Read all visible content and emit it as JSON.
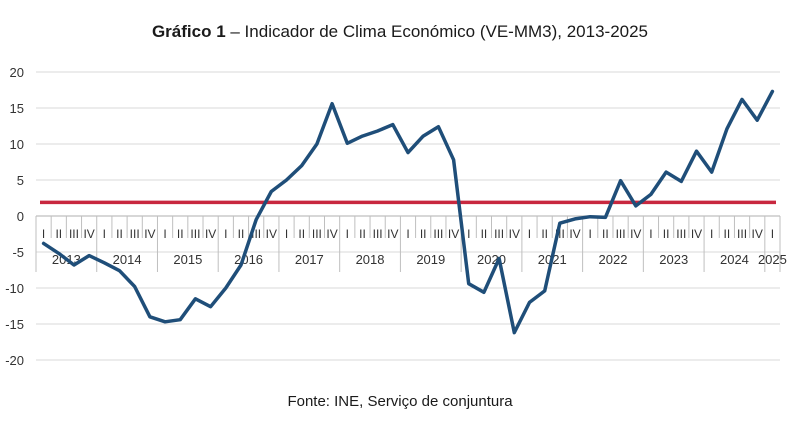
{
  "chart_data": {
    "type": "line",
    "title_bold": "Gráfico 1",
    "title_rest": " – Indicador de Clima Económico (VE-MM3), 2013-2025",
    "xlabel": "",
    "ylabel": "",
    "ylim": [
      -20,
      20
    ],
    "yticks": [
      20,
      15,
      10,
      5,
      0,
      -5,
      -10,
      -15,
      -20
    ],
    "grid": "horizontal",
    "years": [
      "2013",
      "2014",
      "2015",
      "2016",
      "2017",
      "2018",
      "2019",
      "2020",
      "2021",
      "2022",
      "2023",
      "2024",
      "2025"
    ],
    "quarter_labels": [
      "I",
      "II",
      "III",
      "IV"
    ],
    "x": [
      "2013-I",
      "2013-II",
      "2013-III",
      "2013-IV",
      "2014-I",
      "2014-II",
      "2014-III",
      "2014-IV",
      "2015-I",
      "2015-II",
      "2015-III",
      "2015-IV",
      "2016-I",
      "2016-II",
      "2016-III",
      "2016-IV",
      "2017-I",
      "2017-II",
      "2017-III",
      "2017-IV",
      "2018-I",
      "2018-II",
      "2018-III",
      "2018-IV",
      "2019-I",
      "2019-II",
      "2019-III",
      "2019-IV",
      "2020-I",
      "2020-II",
      "2020-III",
      "2020-IV",
      "2021-I",
      "2021-II",
      "2021-III",
      "2021-IV",
      "2022-I",
      "2022-II",
      "2022-III",
      "2022-IV",
      "2023-I",
      "2023-II",
      "2023-III",
      "2023-IV",
      "2024-I",
      "2024-II",
      "2024-III",
      "2024-IV",
      "2025-I"
    ],
    "series": [
      {
        "color": "#1f4e79",
        "values": [
          -3.8,
          -5.2,
          -6.8,
          -5.5,
          -6.5,
          -7.6,
          -9.8,
          -14.0,
          -14.7,
          -14.4,
          -11.5,
          -12.6,
          -10.0,
          -6.8,
          -0.5,
          3.4,
          5.0,
          7.0,
          10.0,
          15.6,
          10.1,
          11.1,
          11.8,
          12.7,
          8.8,
          11.1,
          12.4,
          7.8,
          -9.4,
          -10.6,
          -5.9,
          -16.2,
          -12.0,
          -10.4,
          -1.0,
          -0.4,
          -0.1,
          -0.2,
          4.9,
          1.4,
          3.0,
          6.1,
          4.8,
          9.0,
          6.1,
          12.1,
          16.2,
          13.3,
          17.3
        ]
      }
    ],
    "reference_line": {
      "value": 1.9,
      "color": "#c8283f"
    },
    "axis_color": "#bfbfbf",
    "grid_color": "#d9d9d9"
  },
  "source": "Fonte: INE, Serviço de conjuntura"
}
